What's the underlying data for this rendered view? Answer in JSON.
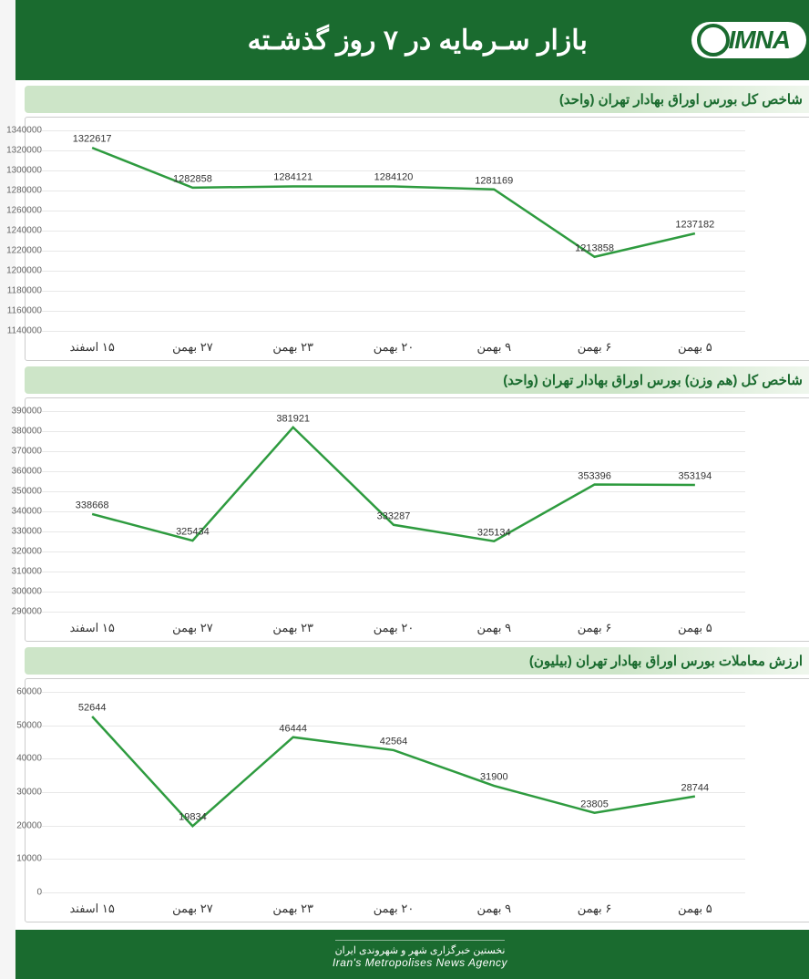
{
  "header": {
    "logo_text": "IMNA",
    "title": "بازار سـرمایه در ۷ روز گذشـته"
  },
  "x_categories": [
    "۵ بهمن",
    "۶ بهمن",
    "۹ بهمن",
    "۲۰ بهمن",
    "۲۳ بهمن",
    "۲۷ بهمن",
    "۱۵ اسفند"
  ],
  "charts": [
    {
      "title": "شاخص کل بورس اوراق بهادار تهران (واحد)",
      "type": "line",
      "values": [
        1237182,
        1213858,
        1281169,
        1284120,
        1284121,
        1282858,
        1322617
      ],
      "labels": [
        "1237182",
        "1213858",
        "1281169",
        "1284120",
        "1284121",
        "1282858",
        "1322617"
      ],
      "y_min": 1140000,
      "y_max": 1340000,
      "y_step": 20000,
      "line_color": "#2e9b3f",
      "line_width": 2.5,
      "grid_color": "#e8e8e8",
      "bg_color": "#ffffff",
      "label_fontsize": 11,
      "axis_fontsize": 10
    },
    {
      "title": "شاخص کل (هم وزن) بورس اوراق بهادار تهران (واحد)",
      "type": "line",
      "values": [
        353194,
        353396,
        325134,
        333287,
        381921,
        325434,
        338668
      ],
      "labels": [
        "353194",
        "353396",
        "325134",
        "333287",
        "381921",
        "325434",
        "338668"
      ],
      "y_min": 290000,
      "y_max": 390000,
      "y_step": 10000,
      "line_color": "#2e9b3f",
      "line_width": 2.5,
      "grid_color": "#e8e8e8",
      "bg_color": "#ffffff",
      "label_fontsize": 11,
      "axis_fontsize": 10
    },
    {
      "title": "ارزش معاملات بورس اوراق بهادار تهران (بیلیون)",
      "type": "line",
      "values": [
        28744,
        23805,
        31900,
        42564,
        46444,
        19834,
        52644
      ],
      "labels": [
        "28744",
        "23805",
        "31900",
        "42564",
        "46444",
        "19834",
        "52644"
      ],
      "y_min": 0,
      "y_max": 60000,
      "y_step": 10000,
      "line_color": "#2e9b3f",
      "line_width": 2.5,
      "grid_color": "#e8e8e8",
      "bg_color": "#ffffff",
      "label_fontsize": 11,
      "axis_fontsize": 10
    }
  ],
  "footer": {
    "line1": "نخستین خبرگزاری شهر و شهروندی ایران",
    "line2": "Iran's Metropolises News Agency"
  },
  "palette": {
    "brand_green": "#1a6b2f",
    "light_green": "#cde5c8",
    "line_green": "#2e9b3f"
  }
}
